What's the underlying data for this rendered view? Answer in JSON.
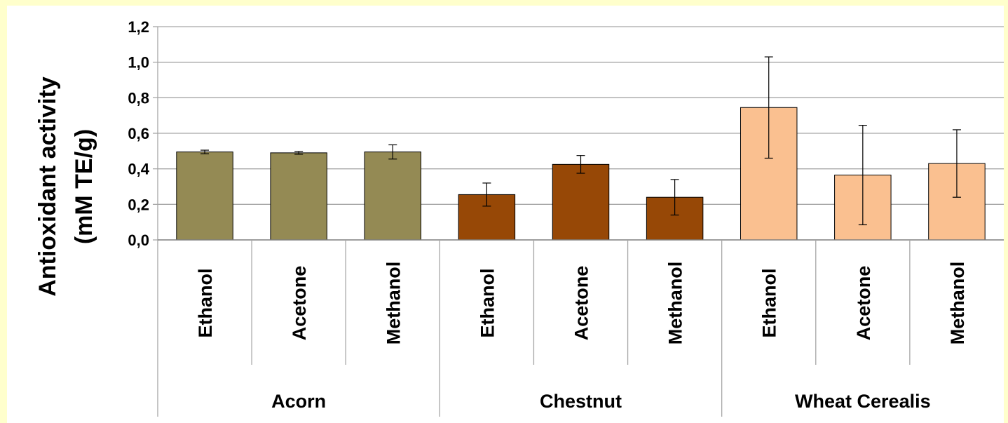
{
  "chart_data": {
    "type": "bar",
    "ylabel_line1": "Antioxidant activity",
    "ylabel_line2": "(mM TE/g)",
    "ylim": [
      0,
      1.2
    ],
    "yticks": [
      "0,0",
      "0,2",
      "0,4",
      "0,6",
      "0,8",
      "1,0",
      "1,2"
    ],
    "grid": true,
    "groups": [
      {
        "name": "Acorn",
        "color": "#948a54",
        "categories": [
          "Ethanol",
          "Acetone",
          "Methanol"
        ],
        "values": [
          0.495,
          0.49,
          0.495
        ],
        "errors": [
          0.01,
          0.008,
          0.04
        ]
      },
      {
        "name": "Chestnut",
        "color": "#974806",
        "categories": [
          "Ethanol",
          "Acetone",
          "Methanol"
        ],
        "values": [
          0.255,
          0.425,
          0.24
        ],
        "errors": [
          0.065,
          0.05,
          0.1
        ]
      },
      {
        "name": "Wheat Cerealis",
        "color": "#fac090",
        "categories": [
          "Ethanol",
          "Acetone",
          "Methanol"
        ],
        "values": [
          0.745,
          0.365,
          0.43
        ],
        "errors": [
          0.285,
          0.28,
          0.19
        ]
      }
    ]
  }
}
